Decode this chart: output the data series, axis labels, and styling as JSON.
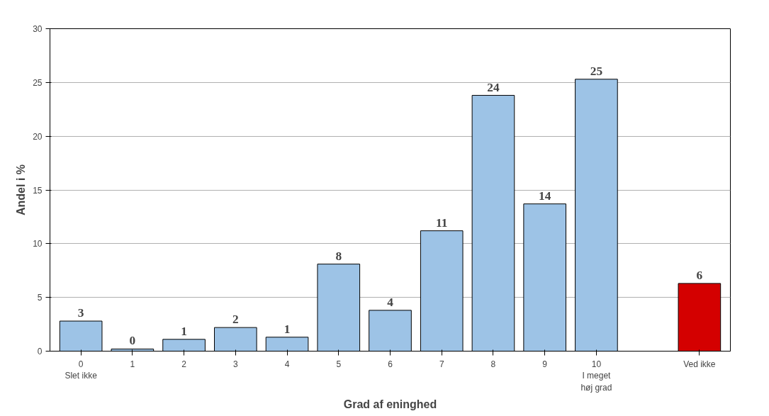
{
  "chart_data": {
    "type": "bar",
    "xlabel": "Grad af eninghed",
    "ylabel": "Andel i %",
    "categories": [
      "0\nSlet ikke",
      "1",
      "2",
      "3",
      "4",
      "5",
      "6",
      "7",
      "8",
      "9",
      "10\nI meget\nhøj grad",
      null,
      "Ved ikke"
    ],
    "values": [
      2.8,
      0.2,
      1.1,
      2.2,
      1.3,
      8.1,
      3.8,
      11.2,
      23.8,
      13.7,
      25.3,
      null,
      6.3
    ],
    "value_labels": [
      "3",
      "0",
      "1",
      "2",
      "1",
      "8",
      "4",
      "11",
      "24",
      "14",
      "25",
      null,
      "6"
    ],
    "colors": [
      "#9dc3e6",
      "#9dc3e6",
      "#9dc3e6",
      "#9dc3e6",
      "#9dc3e6",
      "#9dc3e6",
      "#9dc3e6",
      "#9dc3e6",
      "#9dc3e6",
      "#9dc3e6",
      "#9dc3e6",
      "#9dc3e6",
      "#d40000"
    ],
    "ylim": [
      0,
      30
    ],
    "yticks": [
      0,
      5,
      10,
      15,
      20,
      25,
      30
    ],
    "grid": "y"
  }
}
